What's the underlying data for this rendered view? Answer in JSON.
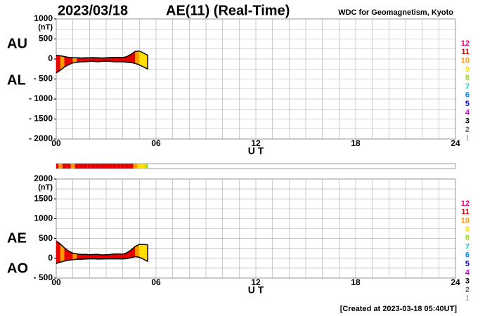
{
  "header": {
    "date": "2023/03/18",
    "title": "AE(11) (Real-Time)",
    "source": "WDC for Geomagnetism, Kyoto",
    "footer": "[Created at 2023-03-18 05:40UT]"
  },
  "station_legend": [
    {
      "count": 12,
      "color": "#e6007e"
    },
    {
      "count": 11,
      "color": "#e60000"
    },
    {
      "count": 10,
      "color": "#ff9900"
    },
    {
      "count": 9,
      "color": "#ffdd00"
    },
    {
      "count": 8,
      "color": "#99dd00"
    },
    {
      "count": 7,
      "color": "#00cccc"
    },
    {
      "count": 6,
      "color": "#0088ff"
    },
    {
      "count": 5,
      "color": "#0000cc"
    },
    {
      "count": 4,
      "color": "#cc00cc"
    },
    {
      "count": 3,
      "color": "#000000"
    },
    {
      "count": 2,
      "color": "#666666"
    },
    {
      "count": 1,
      "color": "#bbbbbb"
    }
  ],
  "station_counts": [
    11,
    10,
    11,
    11,
    10,
    11,
    11,
    11,
    11,
    11,
    11,
    11,
    11,
    11,
    11,
    11,
    11,
    11,
    11,
    10,
    9,
    9,
    8
  ],
  "chart_data": [
    {
      "type": "band",
      "y_unit": "(nT)",
      "xlabel": "U T",
      "x": [
        0,
        0.25,
        0.5,
        0.75,
        1,
        1.25,
        1.5,
        1.75,
        2,
        2.25,
        2.5,
        2.75,
        3,
        3.25,
        3.5,
        3.75,
        4,
        4.25,
        4.5,
        4.75,
        5,
        5.25,
        5.5
      ],
      "series": [
        {
          "name": "AU",
          "color": "#000000",
          "values": [
            90,
            80,
            60,
            40,
            30,
            30,
            25,
            30,
            30,
            35,
            30,
            25,
            30,
            35,
            40,
            40,
            35,
            60,
            120,
            190,
            200,
            150,
            90
          ]
        },
        {
          "name": "AL",
          "color": "#000000",
          "values": [
            -350,
            -280,
            -200,
            -140,
            -100,
            -80,
            -70,
            -70,
            -60,
            -60,
            -70,
            -60,
            -60,
            -60,
            -70,
            -70,
            -70,
            -80,
            -90,
            -110,
            -150,
            -200,
            -250
          ]
        }
      ],
      "xlim": [
        0,
        24
      ],
      "xticks": [
        {
          "value": 0,
          "label": "00"
        },
        {
          "value": 6,
          "label": "06"
        },
        12,
        18,
        24
      ],
      "xgrid": [
        0,
        1,
        2,
        3,
        4,
        5,
        6,
        7,
        8,
        9,
        10,
        11,
        12,
        13,
        14,
        15,
        16,
        17,
        18,
        19,
        20,
        21,
        22,
        23,
        24
      ],
      "ylim": [
        -2000,
        1000
      ],
      "yticks": [
        {
          "value": -2000,
          "label": "- 2000"
        },
        {
          "value": -1500,
          "label": "- 1500"
        },
        {
          "value": -1000,
          "label": "- 1000"
        },
        {
          "value": -500,
          "label": "- 500"
        },
        0,
        500,
        1000
      ],
      "ygrid": [
        -2000,
        -1750,
        -1500,
        -1250,
        -1000,
        -750,
        -500,
        -250,
        0,
        250,
        500,
        750,
        1000
      ]
    },
    {
      "type": "band",
      "y_unit": "(nT)",
      "xlabel": "U T",
      "x": [
        0,
        0.25,
        0.5,
        0.75,
        1,
        1.25,
        1.5,
        1.75,
        2,
        2.25,
        2.5,
        2.75,
        3,
        3.25,
        3.5,
        3.75,
        4,
        4.25,
        4.5,
        4.75,
        5,
        5.25,
        5.5
      ],
      "series": [
        {
          "name": "AE",
          "color": "#000000",
          "values": [
            440,
            360,
            260,
            180,
            130,
            110,
            95,
            100,
            90,
            95,
            100,
            85,
            90,
            95,
            110,
            110,
            105,
            140,
            210,
            300,
            350,
            350,
            340
          ]
        },
        {
          "name": "AO",
          "color": "#000000",
          "values": [
            -130,
            -100,
            -70,
            -50,
            -35,
            -25,
            -22.5,
            -20,
            -15,
            -12.5,
            -20,
            -17.5,
            -15,
            -12.5,
            -15,
            -15,
            -17.5,
            -10,
            15,
            40,
            25,
            -25,
            -80
          ]
        }
      ],
      "xlim": [
        0,
        24
      ],
      "xticks": [
        {
          "value": 0,
          "label": "00"
        },
        {
          "value": 6,
          "label": "06"
        },
        12,
        18,
        24
      ],
      "xgrid": [
        0,
        1,
        2,
        3,
        4,
        5,
        6,
        7,
        8,
        9,
        10,
        11,
        12,
        13,
        14,
        15,
        16,
        17,
        18,
        19,
        20,
        21,
        22,
        23,
        24
      ],
      "ylim": [
        -500,
        2000
      ],
      "yticks": [
        {
          "value": -500,
          "label": "- 500"
        },
        0,
        500,
        1000,
        1500,
        2000
      ],
      "ygrid": [
        -500,
        -250,
        0,
        250,
        500,
        750,
        1000,
        1250,
        1500,
        1750,
        2000
      ]
    }
  ]
}
